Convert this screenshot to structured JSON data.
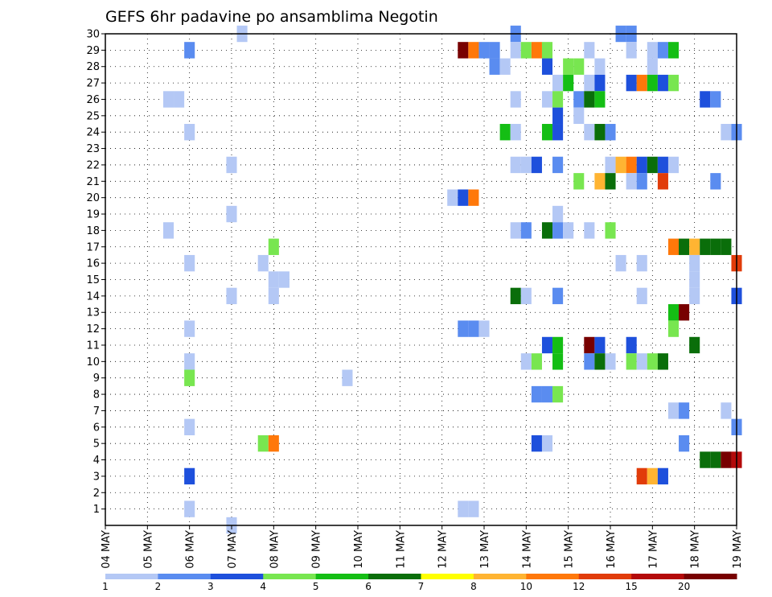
{
  "chart_data": {
    "type": "heatmap",
    "title": "GEFS 6hr padavine po ansamblima Negotin",
    "xlabel": "",
    "ylabel": "",
    "x_tick_labels": [
      "04 MAY",
      "05 MAY",
      "06 MAY",
      "07 MAY",
      "08 MAY",
      "09 MAY",
      "10 MAY",
      "11 MAY",
      "12 MAY",
      "13 MAY",
      "14 MAY",
      "15 MAY",
      "16 MAY",
      "17 MAY",
      "18 MAY",
      "19 MAY"
    ],
    "y_tick_labels": [
      "1",
      "2",
      "3",
      "4",
      "5",
      "6",
      "7",
      "8",
      "9",
      "10",
      "11",
      "12",
      "13",
      "14",
      "15",
      "16",
      "17",
      "18",
      "19",
      "20",
      "21",
      "22",
      "23",
      "24",
      "25",
      "26",
      "27",
      "28",
      "29",
      "30"
    ],
    "ylim": [
      0,
      30
    ],
    "grid": true,
    "legend_placement": "bottom",
    "legend": {
      "labels": [
        "1",
        "2",
        "3",
        "4",
        "5",
        "6",
        "7",
        "8",
        "10",
        "12",
        "15",
        "20"
      ],
      "colors": [
        "#b4c8f5",
        "#5a8cf0",
        "#1e50dc",
        "#78e650",
        "#14be14",
        "#0a6e0a",
        "#ffff00",
        "#ffb432",
        "#ff780a",
        "#e13c0a",
        "#b40a0a",
        "#780000"
      ]
    },
    "x_start": "04 MAY 00Z",
    "step_hours": 6,
    "cells": [
      {
        "x": "07 MAY 06Z",
        "y": 30,
        "v": 1
      },
      {
        "x": "13 MAY 18Z",
        "y": 30,
        "v": 2
      },
      {
        "x": "16 MAY 06Z",
        "y": 30,
        "v": 2
      },
      {
        "x": "16 MAY 12Z",
        "y": 30,
        "v": 2
      },
      {
        "x": "06 MAY 00Z",
        "y": 29,
        "v": 2
      },
      {
        "x": "12 MAY 12Z",
        "y": 29,
        "v": 20
      },
      {
        "x": "12 MAY 18Z",
        "y": 29,
        "v": 10
      },
      {
        "x": "13 MAY 00Z",
        "y": 29,
        "v": 2
      },
      {
        "x": "13 MAY 06Z",
        "y": 29,
        "v": 2
      },
      {
        "x": "13 MAY 18Z",
        "y": 29,
        "v": 1
      },
      {
        "x": "14 MAY 00Z",
        "y": 29,
        "v": 4
      },
      {
        "x": "14 MAY 06Z",
        "y": 29,
        "v": 10
      },
      {
        "x": "14 MAY 12Z",
        "y": 29,
        "v": 4
      },
      {
        "x": "15 MAY 12Z",
        "y": 29,
        "v": 1
      },
      {
        "x": "16 MAY 12Z",
        "y": 29,
        "v": 1
      },
      {
        "x": "17 MAY 00Z",
        "y": 29,
        "v": 1
      },
      {
        "x": "17 MAY 06Z",
        "y": 29,
        "v": 2
      },
      {
        "x": "17 MAY 12Z",
        "y": 29,
        "v": 5
      },
      {
        "x": "13 MAY 06Z",
        "y": 28,
        "v": 2
      },
      {
        "x": "13 MAY 12Z",
        "y": 28,
        "v": 1
      },
      {
        "x": "14 MAY 12Z",
        "y": 28,
        "v": 3
      },
      {
        "x": "15 MAY 00Z",
        "y": 28,
        "v": 4
      },
      {
        "x": "15 MAY 06Z",
        "y": 28,
        "v": 4
      },
      {
        "x": "15 MAY 18Z",
        "y": 28,
        "v": 1
      },
      {
        "x": "17 MAY 00Z",
        "y": 28,
        "v": 1
      },
      {
        "x": "14 MAY 18Z",
        "y": 27,
        "v": 1
      },
      {
        "x": "15 MAY 00Z",
        "y": 27,
        "v": 5
      },
      {
        "x": "15 MAY 12Z",
        "y": 27,
        "v": 1
      },
      {
        "x": "15 MAY 18Z",
        "y": 27,
        "v": 3
      },
      {
        "x": "16 MAY 12Z",
        "y": 27,
        "v": 3
      },
      {
        "x": "16 MAY 18Z",
        "y": 27,
        "v": 10
      },
      {
        "x": "17 MAY 00Z",
        "y": 27,
        "v": 5
      },
      {
        "x": "17 MAY 06Z",
        "y": 27,
        "v": 3
      },
      {
        "x": "17 MAY 12Z",
        "y": 27,
        "v": 4
      },
      {
        "x": "05 MAY 12Z",
        "y": 26,
        "v": 1
      },
      {
        "x": "05 MAY 18Z",
        "y": 26,
        "v": 1
      },
      {
        "x": "13 MAY 18Z",
        "y": 26,
        "v": 1
      },
      {
        "x": "14 MAY 12Z",
        "y": 26,
        "v": 1
      },
      {
        "x": "14 MAY 18Z",
        "y": 26,
        "v": 4
      },
      {
        "x": "15 MAY 06Z",
        "y": 26,
        "v": 2
      },
      {
        "x": "15 MAY 12Z",
        "y": 26,
        "v": 6
      },
      {
        "x": "15 MAY 18Z",
        "y": 26,
        "v": 5
      },
      {
        "x": "18 MAY 06Z",
        "y": 26,
        "v": 3
      },
      {
        "x": "18 MAY 12Z",
        "y": 26,
        "v": 2
      },
      {
        "x": "14 MAY 18Z",
        "y": 25,
        "v": 3
      },
      {
        "x": "15 MAY 06Z",
        "y": 25,
        "v": 1
      },
      {
        "x": "06 MAY 00Z",
        "y": 24,
        "v": 1
      },
      {
        "x": "13 MAY 12Z",
        "y": 24,
        "v": 5
      },
      {
        "x": "13 MAY 18Z",
        "y": 24,
        "v": 1
      },
      {
        "x": "14 MAY 12Z",
        "y": 24,
        "v": 5
      },
      {
        "x": "14 MAY 18Z",
        "y": 24,
        "v": 3
      },
      {
        "x": "15 MAY 12Z",
        "y": 24,
        "v": 1
      },
      {
        "x": "15 MAY 18Z",
        "y": 24,
        "v": 6
      },
      {
        "x": "16 MAY 00Z",
        "y": 24,
        "v": 2
      },
      {
        "x": "18 MAY 18Z",
        "y": 24,
        "v": 1
      },
      {
        "x": "19 MAY 00Z",
        "y": 24,
        "v": 2
      },
      {
        "x": "07 MAY 00Z",
        "y": 22,
        "v": 1
      },
      {
        "x": "13 MAY 18Z",
        "y": 22,
        "v": 1
      },
      {
        "x": "14 MAY 00Z",
        "y": 22,
        "v": 1
      },
      {
        "x": "14 MAY 06Z",
        "y": 22,
        "v": 3
      },
      {
        "x": "14 MAY 18Z",
        "y": 22,
        "v": 2
      },
      {
        "x": "16 MAY 00Z",
        "y": 22,
        "v": 1
      },
      {
        "x": "16 MAY 06Z",
        "y": 22,
        "v": 8
      },
      {
        "x": "16 MAY 12Z",
        "y": 22,
        "v": 10
      },
      {
        "x": "16 MAY 18Z",
        "y": 22,
        "v": 3
      },
      {
        "x": "17 MAY 00Z",
        "y": 22,
        "v": 6
      },
      {
        "x": "17 MAY 06Z",
        "y": 22,
        "v": 3
      },
      {
        "x": "17 MAY 12Z",
        "y": 22,
        "v": 1
      },
      {
        "x": "15 MAY 06Z",
        "y": 21,
        "v": 4
      },
      {
        "x": "15 MAY 18Z",
        "y": 21,
        "v": 8
      },
      {
        "x": "16 MAY 00Z",
        "y": 21,
        "v": 6
      },
      {
        "x": "16 MAY 12Z",
        "y": 21,
        "v": 1
      },
      {
        "x": "16 MAY 18Z",
        "y": 21,
        "v": 2
      },
      {
        "x": "17 MAY 06Z",
        "y": 21,
        "v": 12
      },
      {
        "x": "18 MAY 12Z",
        "y": 21,
        "v": 2
      },
      {
        "x": "12 MAY 06Z",
        "y": 20,
        "v": 1
      },
      {
        "x": "12 MAY 12Z",
        "y": 20,
        "v": 3
      },
      {
        "x": "12 MAY 18Z",
        "y": 20,
        "v": 10
      },
      {
        "x": "07 MAY 00Z",
        "y": 19,
        "v": 1
      },
      {
        "x": "14 MAY 18Z",
        "y": 19,
        "v": 1
      },
      {
        "x": "05 MAY 12Z",
        "y": 18,
        "v": 1
      },
      {
        "x": "13 MAY 18Z",
        "y": 18,
        "v": 1
      },
      {
        "x": "14 MAY 00Z",
        "y": 18,
        "v": 2
      },
      {
        "x": "14 MAY 12Z",
        "y": 18,
        "v": 6
      },
      {
        "x": "14 MAY 18Z",
        "y": 18,
        "v": 2
      },
      {
        "x": "15 MAY 00Z",
        "y": 18,
        "v": 1
      },
      {
        "x": "15 MAY 12Z",
        "y": 18,
        "v": 1
      },
      {
        "x": "16 MAY 00Z",
        "y": 18,
        "v": 4
      },
      {
        "x": "08 MAY 00Z",
        "y": 17,
        "v": 4
      },
      {
        "x": "17 MAY 12Z",
        "y": 17,
        "v": 10
      },
      {
        "x": "17 MAY 18Z",
        "y": 17,
        "v": 6
      },
      {
        "x": "18 MAY 00Z",
        "y": 17,
        "v": 8
      },
      {
        "x": "18 MAY 06Z",
        "y": 17,
        "v": 6
      },
      {
        "x": "18 MAY 12Z",
        "y": 17,
        "v": 6
      },
      {
        "x": "18 MAY 18Z",
        "y": 17,
        "v": 6
      },
      {
        "x": "06 MAY 00Z",
        "y": 16,
        "v": 1
      },
      {
        "x": "07 MAY 18Z",
        "y": 16,
        "v": 1
      },
      {
        "x": "16 MAY 06Z",
        "y": 16,
        "v": 1
      },
      {
        "x": "16 MAY 18Z",
        "y": 16,
        "v": 1
      },
      {
        "x": "18 MAY 00Z",
        "y": 16,
        "v": 1
      },
      {
        "x": "19 MAY 00Z",
        "y": 16,
        "v": 12
      },
      {
        "x": "08 MAY 00Z",
        "y": 15,
        "v": 1
      },
      {
        "x": "08 MAY 06Z",
        "y": 15,
        "v": 1
      },
      {
        "x": "18 MAY 00Z",
        "y": 15,
        "v": 1
      },
      {
        "x": "07 MAY 00Z",
        "y": 14,
        "v": 1
      },
      {
        "x": "08 MAY 00Z",
        "y": 14,
        "v": 1
      },
      {
        "x": "13 MAY 18Z",
        "y": 14,
        "v": 6
      },
      {
        "x": "14 MAY 00Z",
        "y": 14,
        "v": 1
      },
      {
        "x": "14 MAY 18Z",
        "y": 14,
        "v": 2
      },
      {
        "x": "16 MAY 18Z",
        "y": 14,
        "v": 1
      },
      {
        "x": "18 MAY 00Z",
        "y": 14,
        "v": 1
      },
      {
        "x": "19 MAY 00Z",
        "y": 14,
        "v": 3
      },
      {
        "x": "17 MAY 12Z",
        "y": 13,
        "v": 5
      },
      {
        "x": "17 MAY 18Z",
        "y": 13,
        "v": 20
      },
      {
        "x": "06 MAY 00Z",
        "y": 12,
        "v": 1
      },
      {
        "x": "12 MAY 12Z",
        "y": 12,
        "v": 2
      },
      {
        "x": "12 MAY 18Z",
        "y": 12,
        "v": 2
      },
      {
        "x": "13 MAY 00Z",
        "y": 12,
        "v": 1
      },
      {
        "x": "17 MAY 12Z",
        "y": 12,
        "v": 4
      },
      {
        "x": "14 MAY 12Z",
        "y": 11,
        "v": 3
      },
      {
        "x": "14 MAY 18Z",
        "y": 11,
        "v": 5
      },
      {
        "x": "15 MAY 12Z",
        "y": 11,
        "v": 20
      },
      {
        "x": "15 MAY 18Z",
        "y": 11,
        "v": 3
      },
      {
        "x": "16 MAY 12Z",
        "y": 11,
        "v": 3
      },
      {
        "x": "18 MAY 00Z",
        "y": 11,
        "v": 6
      },
      {
        "x": "06 MAY 00Z",
        "y": 10,
        "v": 1
      },
      {
        "x": "14 MAY 00Z",
        "y": 10,
        "v": 1
      },
      {
        "x": "14 MAY 06Z",
        "y": 10,
        "v": 4
      },
      {
        "x": "14 MAY 18Z",
        "y": 10,
        "v": 5
      },
      {
        "x": "15 MAY 12Z",
        "y": 10,
        "v": 2
      },
      {
        "x": "15 MAY 18Z",
        "y": 10,
        "v": 6
      },
      {
        "x": "16 MAY 00Z",
        "y": 10,
        "v": 1
      },
      {
        "x": "16 MAY 12Z",
        "y": 10,
        "v": 4
      },
      {
        "x": "16 MAY 18Z",
        "y": 10,
        "v": 1
      },
      {
        "x": "17 MAY 00Z",
        "y": 10,
        "v": 4
      },
      {
        "x": "17 MAY 06Z",
        "y": 10,
        "v": 6
      },
      {
        "x": "06 MAY 00Z",
        "y": 9,
        "v": 4
      },
      {
        "x": "09 MAY 18Z",
        "y": 9,
        "v": 1
      },
      {
        "x": "14 MAY 06Z",
        "y": 8,
        "v": 2
      },
      {
        "x": "14 MAY 12Z",
        "y": 8,
        "v": 2
      },
      {
        "x": "14 MAY 18Z",
        "y": 8,
        "v": 4
      },
      {
        "x": "17 MAY 12Z",
        "y": 7,
        "v": 1
      },
      {
        "x": "17 MAY 18Z",
        "y": 7,
        "v": 2
      },
      {
        "x": "18 MAY 18Z",
        "y": 7,
        "v": 1
      },
      {
        "x": "06 MAY 00Z",
        "y": 6,
        "v": 1
      },
      {
        "x": "19 MAY 00Z",
        "y": 6,
        "v": 2
      },
      {
        "x": "07 MAY 18Z",
        "y": 5,
        "v": 4
      },
      {
        "x": "08 MAY 00Z",
        "y": 5,
        "v": 10
      },
      {
        "x": "14 MAY 06Z",
        "y": 5,
        "v": 3
      },
      {
        "x": "14 MAY 12Z",
        "y": 5,
        "v": 1
      },
      {
        "x": "17 MAY 18Z",
        "y": 5,
        "v": 2
      },
      {
        "x": "18 MAY 06Z",
        "y": 4,
        "v": 6
      },
      {
        "x": "18 MAY 12Z",
        "y": 4,
        "v": 6
      },
      {
        "x": "18 MAY 18Z",
        "y": 4,
        "v": 20
      },
      {
        "x": "19 MAY 00Z",
        "y": 4,
        "v": 15
      },
      {
        "x": "06 MAY 00Z",
        "y": 3,
        "v": 3
      },
      {
        "x": "16 MAY 18Z",
        "y": 3,
        "v": 12
      },
      {
        "x": "17 MAY 00Z",
        "y": 3,
        "v": 8
      },
      {
        "x": "17 MAY 06Z",
        "y": 3,
        "v": 3
      },
      {
        "x": "06 MAY 00Z",
        "y": 1,
        "v": 1
      },
      {
        "x": "12 MAY 12Z",
        "y": 1,
        "v": 1
      },
      {
        "x": "12 MAY 18Z",
        "y": 1,
        "v": 1
      },
      {
        "x": "07 MAY 00Z",
        "y": 0,
        "v": 1
      }
    ]
  }
}
